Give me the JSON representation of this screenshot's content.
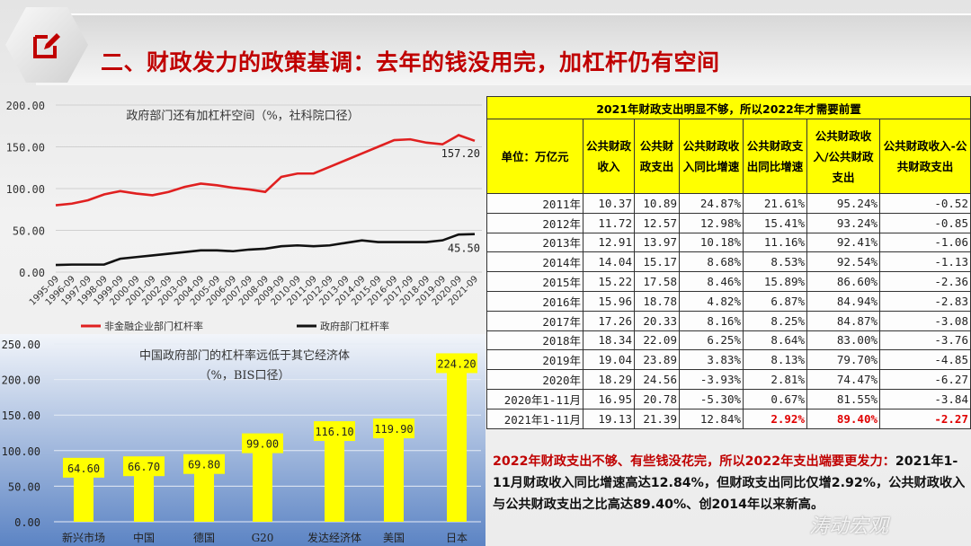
{
  "slide": {
    "title": "二、财政发力的政策基调：去年的钱没用完，加杠杆仍有空间",
    "watermark": "涛动宏观"
  },
  "chart_data": [
    {
      "type": "line",
      "title": "政府部门还有加杠杆空间（%，社科院口径）",
      "ylim": [
        0,
        200
      ],
      "yticks": [
        "0.00",
        "50.00",
        "100.00",
        "150.00",
        "200.00"
      ],
      "grid": true,
      "legend": "bottom",
      "categories": [
        "1995-09",
        "1996-09",
        "1997-09",
        "1998-09",
        "1999-09",
        "2000-09",
        "2001-09",
        "2002-09",
        "2003-09",
        "2004-09",
        "2005-09",
        "2006-09",
        "2007-09",
        "2008-09",
        "2009-09",
        "2010-09",
        "2011-09",
        "2012-09",
        "2013-09",
        "2014-09",
        "2015-09",
        "2016-09",
        "2017-09",
        "2018-09",
        "2019-09",
        "2020-09",
        "2021-09"
      ],
      "series": [
        {
          "name": "非金融企业部门杠杆率",
          "color": "#e02020",
          "end_label": "157.20",
          "values": [
            80,
            82,
            86,
            93,
            97,
            94,
            92,
            96,
            102,
            106,
            104,
            101,
            99,
            96,
            114,
            118,
            118,
            126,
            134,
            142,
            150,
            158,
            159,
            155,
            153,
            164,
            157.2
          ]
        },
        {
          "name": "政府部门杠杆率",
          "color": "#111111",
          "end_label": "45.50",
          "values": [
            8.5,
            9,
            9,
            9,
            16,
            18,
            20,
            22,
            24,
            26,
            26,
            25,
            27,
            28,
            31,
            32,
            31,
            32,
            35,
            38,
            36,
            36,
            36,
            36,
            38,
            45,
            45.5
          ]
        }
      ]
    },
    {
      "type": "bar",
      "title": "中国政府部门的杠杆率远低于其它经济体",
      "subtitle": "（%，BIS口径）",
      "ylim": [
        0,
        250
      ],
      "yticks": [
        "0.00",
        "50.00",
        "100.00",
        "150.00",
        "200.00",
        "250.00"
      ],
      "grid": true,
      "bar_color": "#ffff00",
      "categories": [
        "新兴市场",
        "中国",
        "德国",
        "G20",
        "发达经济体",
        "美国",
        "日本"
      ],
      "values": [
        64.6,
        66.7,
        69.8,
        99.0,
        116.1,
        119.9,
        224.2
      ],
      "labels": [
        "64.60",
        "66.70",
        "69.80",
        "99.00",
        "116.10",
        "119.90",
        "224.20"
      ]
    }
  ],
  "table": {
    "title": "2021年财政支出明显不够，所以2022年才需要前置",
    "headers": [
      "单位：万亿元",
      "公共财政收入",
      "公共财政支出",
      "公共财政收入同比增速",
      "公共财政支出同比增速",
      "公共财政收入/公共财政支出",
      "公共财政收入-公共财政支出"
    ],
    "rows": [
      [
        "2011年",
        "10.37",
        "10.89",
        "24.87%",
        "21.61%",
        "95.24%",
        "-0.52"
      ],
      [
        "2012年",
        "11.72",
        "12.57",
        "12.98%",
        "15.41%",
        "93.24%",
        "-0.85"
      ],
      [
        "2013年",
        "12.91",
        "13.97",
        "10.18%",
        "11.16%",
        "92.41%",
        "-1.06"
      ],
      [
        "2014年",
        "14.04",
        "15.17",
        "8.68%",
        "8.53%",
        "92.54%",
        "-1.13"
      ],
      [
        "2015年",
        "15.22",
        "17.58",
        "8.46%",
        "15.89%",
        "86.60%",
        "-2.36"
      ],
      [
        "2016年",
        "15.96",
        "18.78",
        "4.82%",
        "6.87%",
        "84.94%",
        "-2.83"
      ],
      [
        "2017年",
        "17.26",
        "20.33",
        "8.16%",
        "8.25%",
        "84.87%",
        "-3.08"
      ],
      [
        "2018年",
        "18.34",
        "22.09",
        "6.25%",
        "8.64%",
        "83.00%",
        "-3.76"
      ],
      [
        "2019年",
        "19.04",
        "23.89",
        "3.83%",
        "8.13%",
        "79.70%",
        "-4.85"
      ],
      [
        "2020年",
        "18.29",
        "24.56",
        "-3.93%",
        "2.81%",
        "74.47%",
        "-6.27"
      ],
      [
        "2020年1-11月",
        "16.95",
        "20.78",
        "-5.30%",
        "0.67%",
        "81.55%",
        "-3.84"
      ],
      [
        "2021年1-11月",
        "19.13",
        "21.39",
        "12.84%",
        "2.92%",
        "89.40%",
        "-2.27"
      ]
    ]
  },
  "note": {
    "lead": "2022年财政支出不够、有些钱没花完，所以2022年支出端要更发力：",
    "body": "2021年1-11月财政收入同比增速高达12.84%，但财政支出同比仅增2.92%，公共财政收入与公共财政支出之比高达89.40%、创2014年以来新高。"
  }
}
